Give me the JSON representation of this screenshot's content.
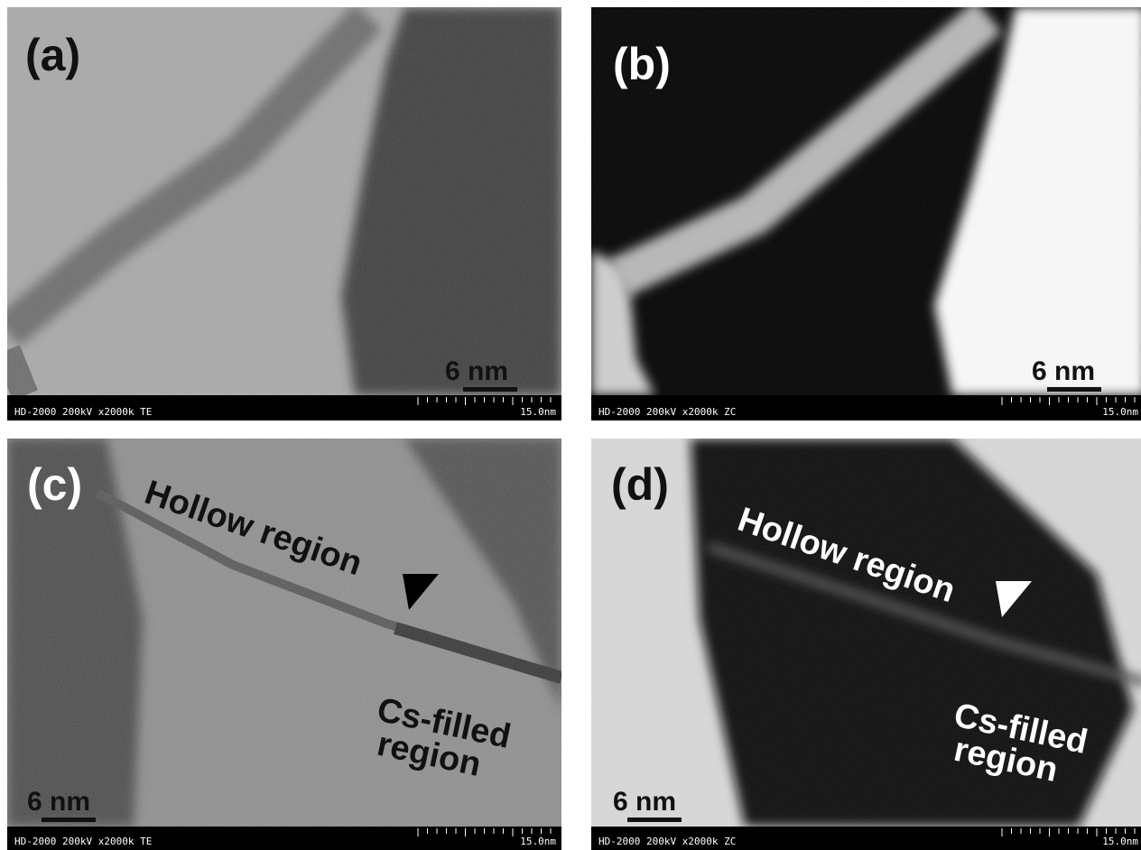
{
  "panels": [
    {
      "label": "(a)",
      "scale": "6 nm",
      "footer_left": "HD-2000  200kV  x2000k  TE",
      "footer_right": "15.0nm"
    },
    {
      "label": "(b)",
      "scale": "6 nm",
      "footer_left": "HD-2000  200kV  x2000k  ZC",
      "footer_right": "15.0nm"
    },
    {
      "label": "(c)",
      "scale": "6 nm",
      "footer_left": "HD-2000  200kV  x2000k  TE",
      "footer_right": "15.0nm",
      "annotations": [
        "Hollow region",
        "Cs-filled",
        "region"
      ]
    },
    {
      "label": "(d)",
      "scale": "6 nm",
      "footer_left": "HD-2000  200kV  x2000k  ZC",
      "footer_right": "15.0nm",
      "annotations": [
        "Hollow region",
        "Cs-filled",
        "region"
      ]
    }
  ]
}
